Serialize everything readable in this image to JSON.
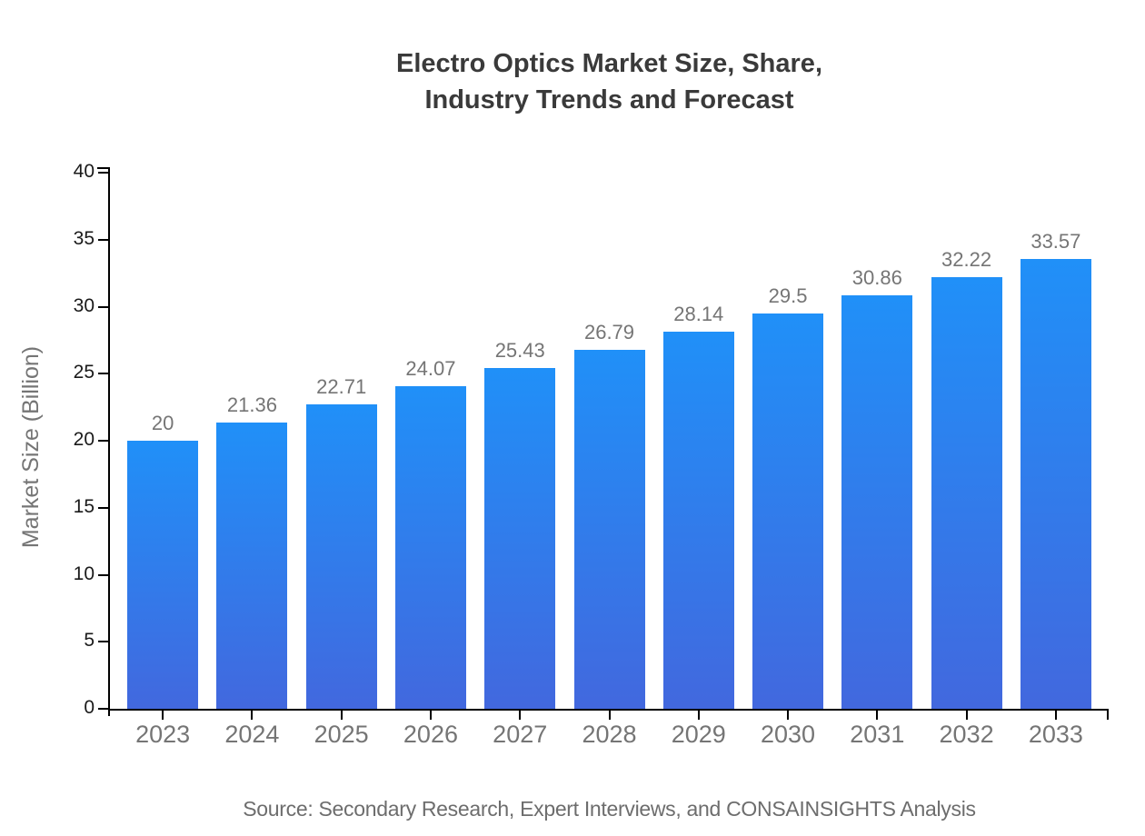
{
  "header": {
    "title_lines": [
      "Electro Optics Market Size, Share,",
      "Industry Trends and Forecast"
    ]
  },
  "footer": {
    "source": "Source: Secondary Research, Expert Interviews, and CONSAINSIGHTS Analysis"
  },
  "chart_data": {
    "type": "bar",
    "title": "Electro Optics Market Size, Share, Industry Trends and Forecast",
    "categories": [
      "2023",
      "2024",
      "2025",
      "2026",
      "2027",
      "2028",
      "2029",
      "2030",
      "2031",
      "2032",
      "2033"
    ],
    "values": [
      20,
      21.36,
      22.71,
      24.07,
      25.43,
      26.79,
      28.14,
      29.5,
      30.86,
      32.22,
      33.57
    ],
    "xlabel": "",
    "ylabel": "Market Size (Billion)",
    "ylim": [
      0,
      40
    ],
    "ytick_step": 5,
    "ytick_labels": [
      "0",
      "5",
      "10",
      "15",
      "20",
      "25",
      "30",
      "35",
      "40"
    ],
    "grid": false,
    "legend": false,
    "bar_gradient_top": "#2090F8",
    "bar_gradient_bottom": "#4268DE",
    "axis_color": "#000000",
    "ytick_label_color": "#1a1a1a",
    "xtick_label_color": "#757575",
    "value_label_color": "#757575",
    "title_color": "#3a3a3a",
    "source_color": "#6d6d6d"
  }
}
